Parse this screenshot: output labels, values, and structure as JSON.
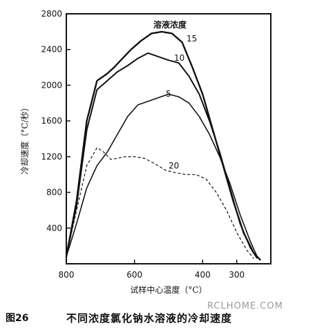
{
  "caption": {
    "number": "图26",
    "text": "不同浓度氯化钠水溶液的冷却速度"
  },
  "watermark": "RCLHOME.COM",
  "chart_data": {
    "type": "line",
    "ylabel": "冷却速度（°C/秒）",
    "xlabel": "试样中心温度（°C）",
    "legend_title": "溶液浓度",
    "x_ticks": [
      "800",
      "600",
      "400",
      "300"
    ],
    "y_ticks": [
      "400",
      "800",
      "1200",
      "1600",
      "2000",
      "2400",
      "2800"
    ],
    "xlim": [
      800,
      200
    ],
    "ylim": [
      0,
      2800
    ],
    "grid": false,
    "series": [
      {
        "name": "15",
        "x": [
          800,
          770,
          740,
          710,
          680,
          660,
          640,
          610,
          580,
          550,
          520,
          490,
          460,
          430,
          400,
          370,
          340,
          310,
          280,
          250,
          230
        ],
        "y": [
          80,
          700,
          1600,
          2050,
          2130,
          2200,
          2280,
          2400,
          2500,
          2580,
          2600,
          2580,
          2480,
          2200,
          1900,
          1500,
          1100,
          700,
          350,
          120,
          40
        ]
      },
      {
        "name": "10",
        "x": [
          800,
          770,
          740,
          710,
          680,
          650,
          620,
          590,
          560,
          530,
          500,
          470,
          440,
          410,
          380,
          350,
          320,
          290,
          260,
          240
        ],
        "y": [
          80,
          650,
          1500,
          1950,
          2050,
          2150,
          2220,
          2300,
          2360,
          2320,
          2280,
          2250,
          2100,
          1900,
          1600,
          1250,
          850,
          450,
          180,
          60
        ]
      },
      {
        "name": "5",
        "x": [
          800,
          770,
          740,
          710,
          680,
          650,
          620,
          590,
          560,
          530,
          500,
          470,
          440,
          410,
          380,
          350,
          320,
          290,
          260,
          240
        ],
        "y": [
          80,
          450,
          850,
          1100,
          1250,
          1450,
          1650,
          1780,
          1820,
          1860,
          1900,
          1870,
          1800,
          1650,
          1450,
          1200,
          900,
          550,
          250,
          80
        ]
      },
      {
        "name": "20",
        "x": [
          800,
          770,
          740,
          710,
          690,
          670,
          650,
          630,
          600,
          570,
          540,
          510,
          480,
          450,
          420,
          390,
          360,
          330,
          300,
          270,
          250
        ],
        "y": [
          80,
          600,
          1100,
          1300,
          1250,
          1170,
          1180,
          1200,
          1200,
          1180,
          1120,
          1050,
          1020,
          1000,
          1000,
          950,
          800,
          600,
          350,
          150,
          60
        ]
      }
    ]
  }
}
